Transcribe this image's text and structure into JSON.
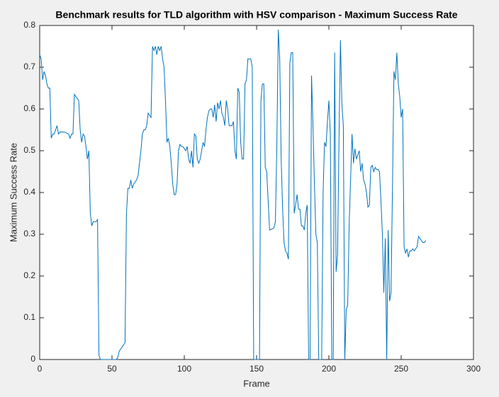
{
  "chart_data": {
    "type": "line",
    "title": "Benchmark results for TLD algorithm with HSV comparison - Maximum Success Rate",
    "x_label": "Frame",
    "y_label": "Maximum Success Rate",
    "xlim": [
      0,
      300
    ],
    "xticks": [
      0,
      50,
      100,
      150,
      200,
      250,
      300
    ],
    "ylim": [
      0,
      0.8
    ],
    "yticks": [
      0,
      0.1,
      0.2,
      0.3,
      0.4,
      0.5,
      0.6,
      0.7,
      0.8
    ],
    "x": [
      0,
      1,
      2,
      3,
      4,
      5,
      6,
      7,
      8,
      9,
      10,
      11,
      12,
      13,
      14,
      15,
      17,
      20,
      21,
      22,
      23,
      24,
      25,
      26,
      27,
      28,
      29,
      30,
      31,
      32,
      33,
      34,
      35,
      36,
      37,
      38,
      39,
      40,
      41,
      42,
      44,
      50,
      52,
      53,
      54,
      55,
      57,
      59,
      60,
      61,
      62,
      63,
      64,
      65,
      66,
      67,
      68,
      69,
      70,
      71,
      72,
      73,
      74,
      75,
      76,
      77,
      78,
      79,
      80,
      81,
      82,
      83,
      84,
      85,
      86,
      87,
      88,
      89,
      90,
      91,
      92,
      93,
      94,
      95,
      96,
      97,
      98,
      99,
      100,
      101,
      102,
      103,
      104,
      105,
      106,
      107,
      108,
      109,
      110,
      111,
      112,
      113,
      114,
      115,
      116,
      117,
      118,
      119,
      120,
      121,
      122,
      123,
      124,
      125,
      126,
      127,
      128,
      129,
      130,
      131,
      133,
      134,
      135,
      136,
      137,
      138,
      139,
      140,
      141,
      142,
      143,
      144,
      145,
      146,
      147,
      148,
      152,
      153,
      154,
      155,
      156,
      157,
      158,
      159,
      162,
      163,
      164,
      165,
      166,
      167,
      168,
      169,
      170,
      171,
      172,
      173,
      174,
      175,
      176,
      177,
      178,
      179,
      180,
      181,
      182,
      183,
      184,
      185,
      186,
      187,
      188,
      189,
      190,
      191,
      192,
      193,
      194,
      195,
      196,
      197,
      198,
      199,
      200,
      201,
      202,
      203,
      204,
      205,
      206,
      207,
      208,
      209,
      210,
      211,
      212,
      213,
      214,
      215,
      216,
      217,
      218,
      219,
      220,
      221,
      222,
      223,
      224,
      225,
      226,
      227,
      228,
      229,
      230,
      231,
      232,
      233,
      234,
      235,
      236,
      237,
      238,
      239,
      240,
      241,
      242,
      243,
      244,
      245,
      246,
      247,
      248,
      249,
      250,
      251,
      252,
      253,
      254,
      255,
      256,
      257,
      258,
      259,
      260,
      261,
      262,
      263,
      264,
      265,
      266,
      267
    ],
    "series": [
      {
        "color": "#0072bd",
        "values": [
          0.73,
          0.72,
          0.67,
          0.69,
          0.68,
          0.66,
          0.65,
          0.65,
          0.53,
          0.54,
          0.54,
          0.55,
          0.56,
          0.54,
          0.545,
          0.545,
          0.545,
          0.54,
          0.53,
          0.54,
          0.54,
          0.635,
          0.63,
          0.625,
          0.62,
          0.55,
          0.52,
          0.54,
          0.535,
          0.51,
          0.48,
          0.5,
          0.35,
          0.32,
          0.33,
          0.33,
          0.33,
          0.335,
          0.01,
          0,
          0,
          0,
          0,
          0,
          0.005,
          0.02,
          0.03,
          0.04,
          0.35,
          0.41,
          0.41,
          0.43,
          0.41,
          0.42,
          0.425,
          0.43,
          0.44,
          0.47,
          0.5,
          0.54,
          0.55,
          0.55,
          0.56,
          0.59,
          0.585,
          0.58,
          0.75,
          0.74,
          0.75,
          0.73,
          0.75,
          0.74,
          0.75,
          0.72,
          0.7,
          0.62,
          0.52,
          0.53,
          0.51,
          0.47,
          0.42,
          0.395,
          0.395,
          0.42,
          0.5,
          0.515,
          0.51,
          0.51,
          0.505,
          0.5,
          0.51,
          0.48,
          0.47,
          0.5,
          0.46,
          0.54,
          0.535,
          0.48,
          0.47,
          0.48,
          0.5,
          0.52,
          0.51,
          0.55,
          0.58,
          0.595,
          0.6,
          0.6,
          0.58,
          0.61,
          0.57,
          0.615,
          0.6,
          0.62,
          0.59,
          0.58,
          0.56,
          0.62,
          0.6,
          0.56,
          0.56,
          0.57,
          0.5,
          0.48,
          0.65,
          0.64,
          0.52,
          0.48,
          0.48,
          0.66,
          0.67,
          0.72,
          0.72,
          0.72,
          0.7,
          0,
          0,
          0.62,
          0.66,
          0.66,
          0.46,
          0.45,
          0.38,
          0.31,
          0.315,
          0.33,
          0.51,
          0.79,
          0.72,
          0.48,
          0.36,
          0.28,
          0.26,
          0.255,
          0.24,
          0.71,
          0.735,
          0.735,
          0.35,
          0.37,
          0.395,
          0.36,
          0.36,
          0.32,
          0.32,
          0.31,
          0.35,
          0.37,
          0,
          0,
          0.68,
          0.56,
          0.42,
          0.3,
          0.28,
          0,
          0,
          0,
          0.4,
          0.52,
          0.51,
          0.57,
          0.62,
          0.54,
          0,
          0,
          0.735,
          0.21,
          0.25,
          0.53,
          0.765,
          0.61,
          0.56,
          0,
          0.12,
          0.13,
          0.32,
          0.43,
          0.54,
          0.47,
          0.505,
          0.48,
          0.49,
          0.5,
          0.45,
          0.47,
          0.43,
          0.42,
          0.4,
          0.365,
          0.37,
          0.46,
          0.465,
          0.45,
          0.46,
          0.455,
          0.455,
          0.45,
          0.38,
          0.3,
          0.16,
          0.29,
          0,
          0.31,
          0.14,
          0.16,
          0.42,
          0.69,
          0.67,
          0.735,
          0.66,
          0.63,
          0.58,
          0.6,
          0.27,
          0.255,
          0.265,
          0.245,
          0.26,
          0.26,
          0.265,
          0.26,
          0.265,
          0.27,
          0.295,
          0.29,
          0.285,
          0.28,
          0.28,
          0.285
        ]
      }
    ]
  }
}
